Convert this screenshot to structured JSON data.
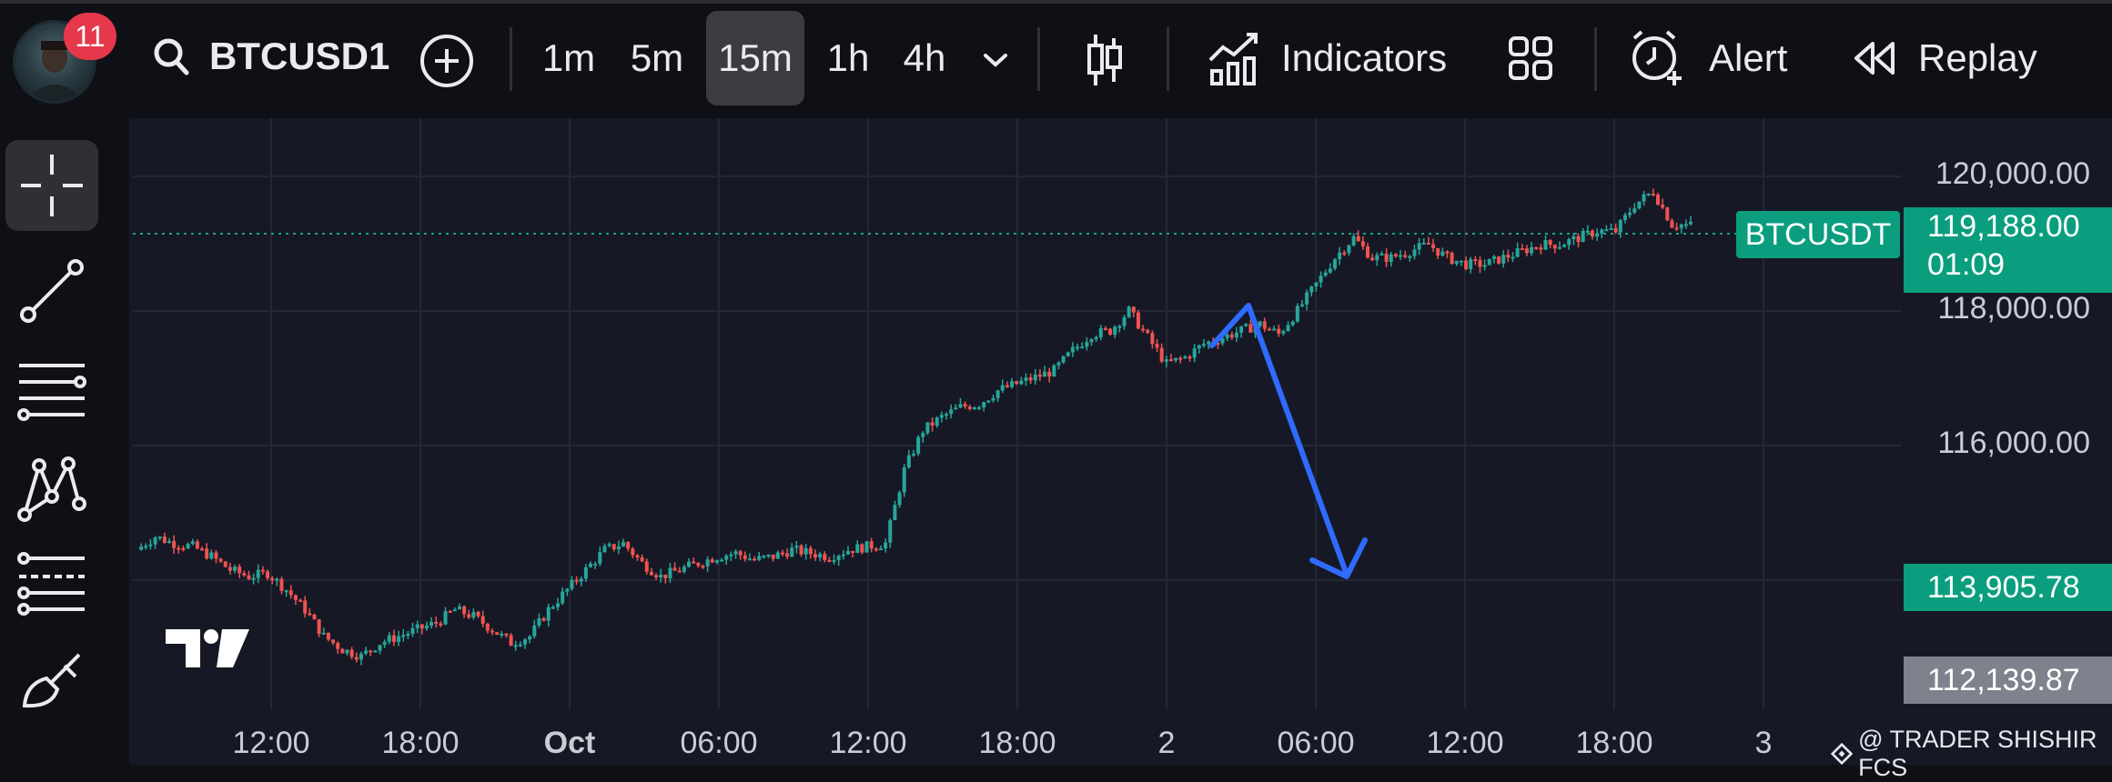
{
  "toolbar": {
    "notification_count": "11",
    "symbol": "BTCUSD1",
    "timeframes": [
      "1m",
      "5m",
      "15m",
      "1h",
      "4h"
    ],
    "active_timeframe": "15m",
    "indicators_label": "Indicators",
    "alert_label": "Alert",
    "replay_label": "Replay"
  },
  "sidebar": {
    "tools": [
      "crosshair-icon",
      "trend-line-icon",
      "horizontal-lines-icon",
      "pattern-icon",
      "fib-retracement-icon",
      "brush-icon"
    ],
    "active_tool": "crosshair-icon"
  },
  "chart": {
    "price_axis": [
      "120,000.00",
      "118,000.00",
      "116,000.00"
    ],
    "time_axis": [
      "12:00",
      "18:00",
      "Oct",
      "06:00",
      "12:00",
      "18:00",
      "2",
      "06:00",
      "12:00",
      "18:00",
      "3"
    ],
    "symbol_tag": "BTCUSDT",
    "last_price": "119,188.00",
    "countdown": "01:09",
    "marker_green": "113,905.78",
    "marker_gray": "112,139.87",
    "watermark": "@ TRADER SHISHIR FCS",
    "colors": {
      "up": "#26a69a",
      "down": "#ef5350",
      "arrow": "#2f6bff",
      "tag": "#0a9e7e"
    }
  },
  "chart_data": {
    "type": "candlestick",
    "symbol": "BTCUSDT",
    "interval": "15m",
    "ylim": [
      111900,
      120800
    ],
    "x": [
      "12:00",
      "18:00",
      "Oct",
      "06:00",
      "12:00",
      "18:00",
      "2",
      "06:00",
      "12:00",
      "18:00",
      "3"
    ],
    "close_path": [
      114300,
      114500,
      114400,
      114350,
      114200,
      114000,
      113900,
      113950,
      113700,
      113400,
      113000,
      112800,
      112700,
      112900,
      113000,
      113100,
      113200,
      113400,
      113300,
      113100,
      112900,
      113000,
      113400,
      113700,
      114000,
      114300,
      114400,
      114100,
      113900,
      114000,
      114100,
      114200,
      114250,
      114150,
      114200,
      114300,
      114250,
      114200,
      114300,
      114350,
      114400,
      115500,
      116100,
      116300,
      116450,
      116500,
      116700,
      116800,
      116900,
      117000,
      117300,
      117550,
      117600,
      117900,
      117500,
      117100,
      117200,
      117400,
      117500,
      117600,
      117700,
      117550,
      117900,
      118300,
      118700,
      119000,
      118700,
      118700,
      118800,
      118900,
      118700,
      118600,
      118600,
      118700,
      118800,
      118900,
      118900,
      119000,
      119100,
      119100,
      119500,
      119700,
      119200,
      119188
    ],
    "annotations": [
      {
        "type": "arrow",
        "from_time": "2 ~02:00",
        "to_time": "2 ~07:00",
        "from_price": 117500,
        "to_price": 114000
      }
    ]
  }
}
